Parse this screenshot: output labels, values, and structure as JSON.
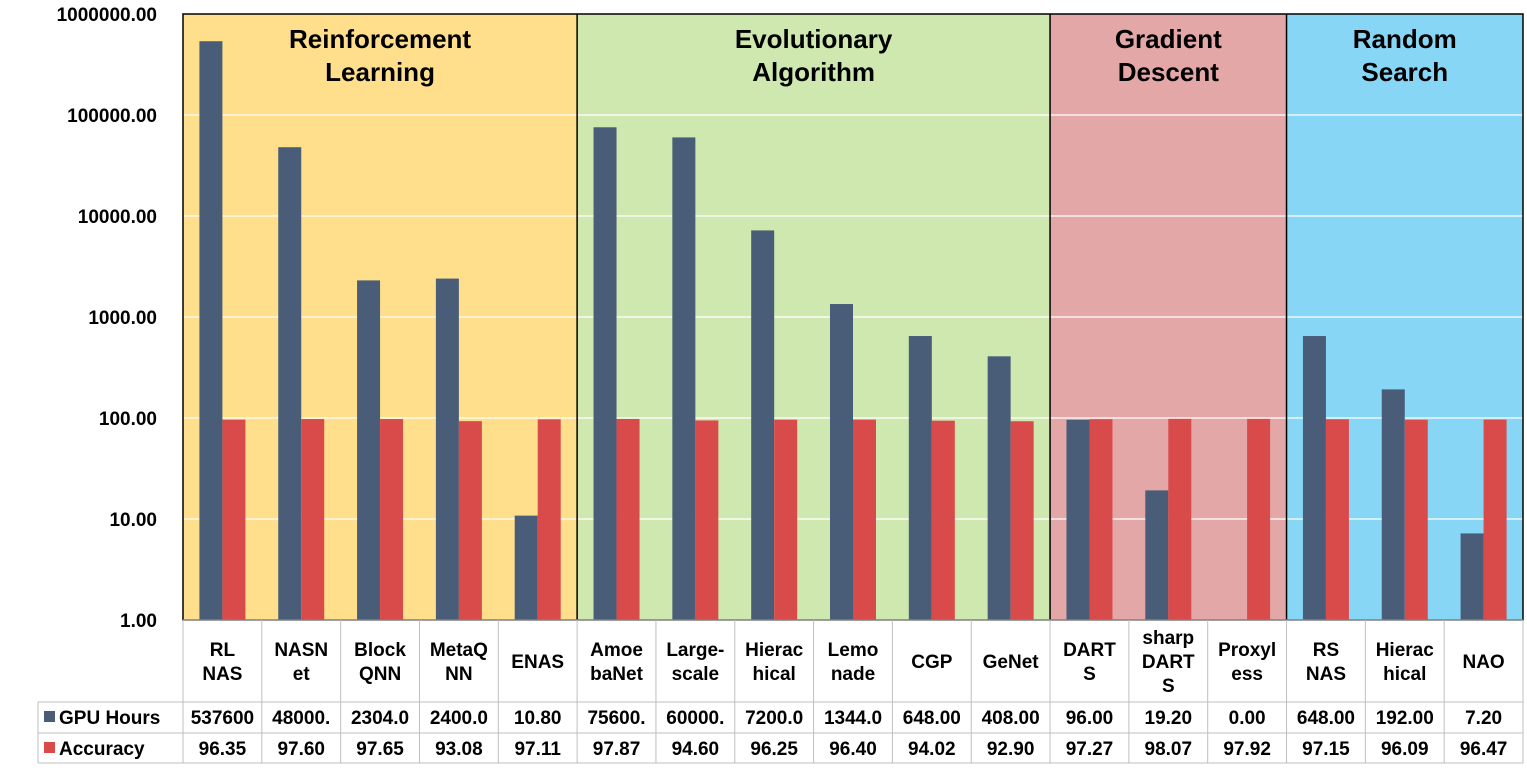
{
  "chart_data": {
    "type": "bar",
    "scale": "log",
    "ylim": [
      1,
      1000000
    ],
    "yticks": [
      "1.00",
      "10.00",
      "100.00",
      "1000.00",
      "10000.00",
      "100000.00",
      "1000000.00"
    ],
    "groups": [
      {
        "label_lines": [
          "Reinforcement",
          "Learning"
        ],
        "count": 5,
        "color": "#FFDF8C"
      },
      {
        "label_lines": [
          "Evolutionary",
          "Algorithm"
        ],
        "count": 6,
        "color": "#CEE8B0"
      },
      {
        "label_lines": [
          "Gradient",
          "Descent"
        ],
        "count": 3,
        "color": "#E3A7A7"
      },
      {
        "label_lines": [
          "Random",
          "Search"
        ],
        "count": 3,
        "color": "#87D6F6"
      }
    ],
    "categories": [
      [
        "RL",
        "NAS"
      ],
      [
        "NASN",
        "et"
      ],
      [
        "Block",
        "QNN"
      ],
      [
        "MetaQ",
        "NN"
      ],
      [
        "ENAS"
      ],
      [
        "Amoe",
        "baNet"
      ],
      [
        "Large-",
        "scale"
      ],
      [
        "Hierac",
        "hical"
      ],
      [
        "Lemo",
        "nade"
      ],
      [
        "CGP"
      ],
      [
        "GeNet"
      ],
      [
        "DART",
        "S"
      ],
      [
        "sharp",
        "DART",
        "S"
      ],
      [
        "Proxyl",
        "ess"
      ],
      [
        "RS",
        "NAS"
      ],
      [
        "Hierac",
        "hical"
      ],
      [
        "NAO"
      ]
    ],
    "series": [
      {
        "name": "GPU Hours",
        "color": "#4A5D78",
        "values": [
          537600,
          48000,
          2304,
          2400,
          10.8,
          75600,
          60000,
          7200,
          1344,
          648,
          408,
          96,
          19.2,
          0,
          648,
          192,
          7.2
        ],
        "table_labels": [
          "537600",
          "48000.",
          "2304.0",
          "2400.0",
          "10.80",
          "75600.",
          "60000.",
          "7200.0",
          "1344.0",
          "648.00",
          "408.00",
          "96.00",
          "19.20",
          "0.00",
          "648.00",
          "192.00",
          "7.20"
        ]
      },
      {
        "name": "Accuracy",
        "color": "#D94B4B",
        "values": [
          96.35,
          97.6,
          97.65,
          93.08,
          97.11,
          97.87,
          94.6,
          96.25,
          96.4,
          94.02,
          92.9,
          97.27,
          98.07,
          97.92,
          97.15,
          96.09,
          96.47
        ],
        "table_labels": [
          "96.35",
          "97.60",
          "97.65",
          "93.08",
          "97.11",
          "97.87",
          "94.60",
          "96.25",
          "96.40",
          "94.02",
          "92.90",
          "97.27",
          "98.07",
          "97.92",
          "97.15",
          "96.09",
          "96.47"
        ]
      }
    ]
  }
}
